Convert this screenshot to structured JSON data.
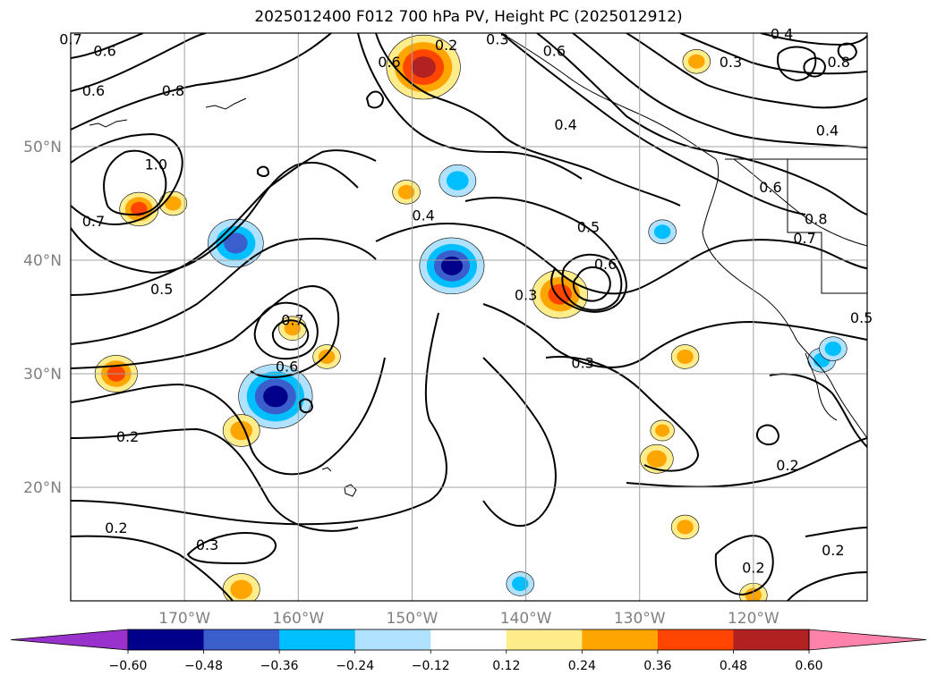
{
  "title": "2025012400 F012 700 hPa PV, Height PC (2025012912)",
  "chart_data": {
    "type": "contour-map",
    "variables": [
      "700 hPa PV (shaded)",
      "Height PC (contours)"
    ],
    "lon_range": [
      -180,
      -110
    ],
    "lat_range": [
      10,
      60
    ],
    "lat_ticks": [
      {
        "value": 20,
        "label": "20°N"
      },
      {
        "value": 30,
        "label": "30°N"
      },
      {
        "value": 40,
        "label": "40°N"
      },
      {
        "value": 50,
        "label": "50°N"
      }
    ],
    "lon_ticks": [
      {
        "value": -170,
        "label": "170°W"
      },
      {
        "value": -160,
        "label": "160°W"
      },
      {
        "value": -150,
        "label": "150°W"
      },
      {
        "value": -140,
        "label": "140°W"
      },
      {
        "value": -130,
        "label": "130°W"
      },
      {
        "value": -120,
        "label": "120°W"
      }
    ],
    "grid": true,
    "colorbar": {
      "extend": "both",
      "levels": [
        -0.6,
        -0.48,
        -0.36,
        -0.24,
        -0.12,
        0.12,
        0.24,
        0.36,
        0.48,
        0.6
      ],
      "tick_labels": [
        "−0.60",
        "−0.48",
        "−0.36",
        "−0.24",
        "−0.12",
        "0.12",
        "0.24",
        "0.36",
        "0.48",
        "0.60"
      ],
      "colors": [
        "#9932cc",
        "#00008b",
        "#3a5fcd",
        "#00bfff",
        "#b0e2ff",
        "#ffffff",
        "#ffec8b",
        "#ffa500",
        "#ff4500",
        "#b22222",
        "#ff82ab"
      ]
    },
    "contour_labels": [
      {
        "lon": -180,
        "lat": 59,
        "text": "0.7"
      },
      {
        "lon": -177,
        "lat": 58,
        "text": "0.6"
      },
      {
        "lon": -178,
        "lat": 54.5,
        "text": "0.6"
      },
      {
        "lon": -171,
        "lat": 54.5,
        "text": "0.8"
      },
      {
        "lon": -172.5,
        "lat": 48,
        "text": "1.0"
      },
      {
        "lon": -178,
        "lat": 43,
        "text": "0.7"
      },
      {
        "lon": -172,
        "lat": 37,
        "text": "0.5"
      },
      {
        "lon": -160.5,
        "lat": 34.3,
        "text": "0.7"
      },
      {
        "lon": -161,
        "lat": 30.2,
        "text": "0.6"
      },
      {
        "lon": -175,
        "lat": 24,
        "text": "0.2"
      },
      {
        "lon": -176,
        "lat": 16,
        "text": "0.2"
      },
      {
        "lon": -168,
        "lat": 14.5,
        "text": "0.3"
      },
      {
        "lon": -152,
        "lat": 57,
        "text": "0.6"
      },
      {
        "lon": -149,
        "lat": 43.5,
        "text": "0.4"
      },
      {
        "lon": -147,
        "lat": 58.5,
        "text": "0.2"
      },
      {
        "lon": -142.5,
        "lat": 59,
        "text": "0.3"
      },
      {
        "lon": -137.5,
        "lat": 58,
        "text": "0.6"
      },
      {
        "lon": -136.5,
        "lat": 51.5,
        "text": "0.4"
      },
      {
        "lon": -134.5,
        "lat": 42.5,
        "text": "0.5"
      },
      {
        "lon": -133,
        "lat": 39.2,
        "text": "0.6"
      },
      {
        "lon": -140,
        "lat": 36.5,
        "text": "0.3"
      },
      {
        "lon": -135,
        "lat": 30.5,
        "text": "0.3"
      },
      {
        "lon": -122,
        "lat": 57,
        "text": "0.3"
      },
      {
        "lon": -117.5,
        "lat": 59.5,
        "text": "0.4"
      },
      {
        "lon": -112.5,
        "lat": 57,
        "text": "0.8"
      },
      {
        "lon": -113.5,
        "lat": 51,
        "text": "0.4"
      },
      {
        "lon": -118.5,
        "lat": 46,
        "text": "0.6"
      },
      {
        "lon": -114.5,
        "lat": 43.2,
        "text": "0.8"
      },
      {
        "lon": -115.5,
        "lat": 41.5,
        "text": "0.7"
      },
      {
        "lon": -110.5,
        "lat": 34.5,
        "text": "0.5"
      },
      {
        "lon": -117,
        "lat": 21.5,
        "text": "0.2"
      },
      {
        "lon": -120,
        "lat": 12.5,
        "text": "0.2"
      },
      {
        "lon": -113,
        "lat": 14,
        "text": "0.2"
      }
    ],
    "pv_anomaly_blobs": [
      {
        "lon": -149,
        "lat": 57,
        "value": 0.55
      },
      {
        "lon": -137,
        "lat": 37,
        "value": 0.45
      },
      {
        "lon": -146.5,
        "lat": 39.5,
        "value": -0.5
      },
      {
        "lon": -162,
        "lat": 28,
        "value": -0.55
      },
      {
        "lon": -165.5,
        "lat": 41.5,
        "value": -0.45
      },
      {
        "lon": -146,
        "lat": 47,
        "value": -0.35
      },
      {
        "lon": -174,
        "lat": 44.5,
        "value": 0.36
      },
      {
        "lon": -171,
        "lat": 45,
        "value": 0.3
      },
      {
        "lon": -176,
        "lat": 30,
        "value": 0.38
      },
      {
        "lon": -157.5,
        "lat": 31.5,
        "value": 0.3
      },
      {
        "lon": -160.5,
        "lat": 34,
        "value": 0.3
      },
      {
        "lon": -165,
        "lat": 25,
        "value": 0.35
      },
      {
        "lon": -165,
        "lat": 11,
        "value": 0.35
      },
      {
        "lon": -128.5,
        "lat": 22.5,
        "value": 0.33
      },
      {
        "lon": -126,
        "lat": 16.5,
        "value": 0.3
      },
      {
        "lon": -120,
        "lat": 10.5,
        "value": 0.3
      },
      {
        "lon": -126,
        "lat": 31.5,
        "value": 0.3
      },
      {
        "lon": -128,
        "lat": 25,
        "value": 0.28
      },
      {
        "lon": -114,
        "lat": 31.2,
        "value": -0.3
      },
      {
        "lon": -113,
        "lat": 32.2,
        "value": -0.3
      },
      {
        "lon": -128,
        "lat": 42.5,
        "value": -0.3
      },
      {
        "lon": -140.5,
        "lat": 11.5,
        "value": -0.3
      },
      {
        "lon": -150.5,
        "lat": 46,
        "value": 0.3
      },
      {
        "lon": -125,
        "lat": 57.5,
        "value": 0.3
      }
    ]
  }
}
